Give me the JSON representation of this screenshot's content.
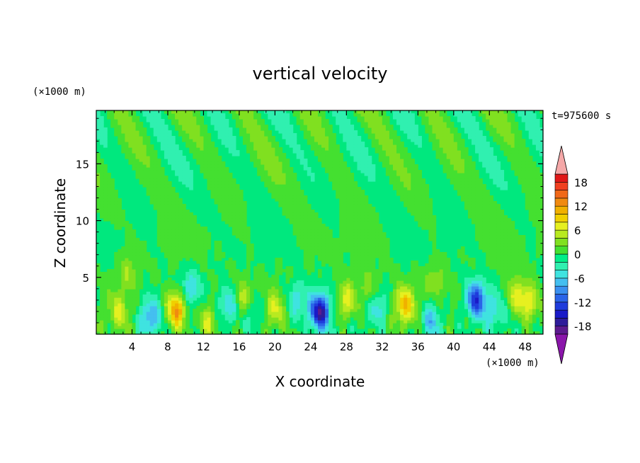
{
  "chart_data": {
    "type": "heatmap",
    "title": "vertical velocity",
    "xlabel": "X coordinate",
    "ylabel": "Z coordinate",
    "x_unit": "(×1000 m)",
    "y_unit": "(×1000 m)",
    "time_label": "t=975600 s",
    "xlim": [
      0,
      50
    ],
    "ylim": [
      0,
      19.7
    ],
    "x_ticks": [
      4,
      8,
      12,
      16,
      20,
      24,
      28,
      32,
      36,
      40,
      44,
      48
    ],
    "x_tick_labels": [
      "4",
      "8",
      "12",
      "16",
      "20",
      "24",
      "28",
      "32",
      "36",
      "40",
      "44",
      "48"
    ],
    "y_ticks": [
      5,
      10,
      15
    ],
    "y_tick_labels": [
      "5",
      "10",
      "15"
    ],
    "colorbar": {
      "levels": [
        -20,
        -18,
        -16,
        -14,
        -12,
        -10,
        -8,
        -6,
        -4,
        -2,
        0,
        2,
        4,
        6,
        8,
        10,
        12,
        14,
        16,
        18,
        20
      ],
      "tick_labels": [
        "18",
        "12",
        "6",
        "0",
        "-6",
        "-12",
        "-18"
      ],
      "tick_values": [
        18,
        12,
        6,
        0,
        -6,
        -12,
        -18
      ],
      "colors": [
        "#5c1a8e",
        "#2e1c9a",
        "#1a1ac8",
        "#1f3cdc",
        "#2a64e8",
        "#3a90f0",
        "#44bff0",
        "#3fe3e0",
        "#30f0b0",
        "#00ee88",
        "#44e030",
        "#80e020",
        "#b8ea20",
        "#e6f020",
        "#f0d000",
        "#f0b000",
        "#f08a10",
        "#f06818",
        "#f04020",
        "#e01818"
      ],
      "over_color": "#f5a8a8",
      "under_color": "#8a16aa",
      "extend": "both"
    },
    "features": [
      {
        "x": 9.0,
        "z": 2.2,
        "w": 2.0
      },
      {
        "x": 34.5,
        "z": 2.6,
        "w": 1.5
      },
      {
        "x": 28.0,
        "z": 3.0,
        "w": 1.2
      },
      {
        "x": 48.5,
        "z": 2.8,
        "w": 1.1
      },
      {
        "x": 47.0,
        "z": 3.5,
        "w": 1.0
      },
      {
        "x": 12.5,
        "z": 1.2,
        "w": 0.9
      },
      {
        "x": 20.0,
        "z": 2.2,
        "w": 0.8
      },
      {
        "x": 2.5,
        "z": 2.0,
        "w": 0.8
      },
      {
        "x": 16.5,
        "z": 3.0,
        "w": 0.8
      },
      {
        "x": 3.5,
        "z": 5.5,
        "w": 0.6
      },
      {
        "x": 30.5,
        "z": 4.0,
        "w": 0.6
      },
      {
        "x": 38.0,
        "z": 4.8,
        "w": 0.5
      },
      {
        "x": 25.0,
        "z": 2.0,
        "w": -2.6
      },
      {
        "x": 42.5,
        "z": 3.1,
        "w": -2.0
      },
      {
        "x": 6.0,
        "z": 1.5,
        "w": -1.3
      },
      {
        "x": 37.5,
        "z": 1.2,
        "w": -1.1
      },
      {
        "x": 14.8,
        "z": 2.5,
        "w": -1.0
      },
      {
        "x": 22.5,
        "z": 3.0,
        "w": -0.9
      },
      {
        "x": 10.5,
        "z": 4.0,
        "w": -0.9
      },
      {
        "x": 31.5,
        "z": 2.5,
        "w": -0.8
      },
      {
        "x": 17.5,
        "z": 2.0,
        "w": -0.7
      },
      {
        "x": 44.5,
        "z": 2.0,
        "w": -0.7
      }
    ]
  }
}
